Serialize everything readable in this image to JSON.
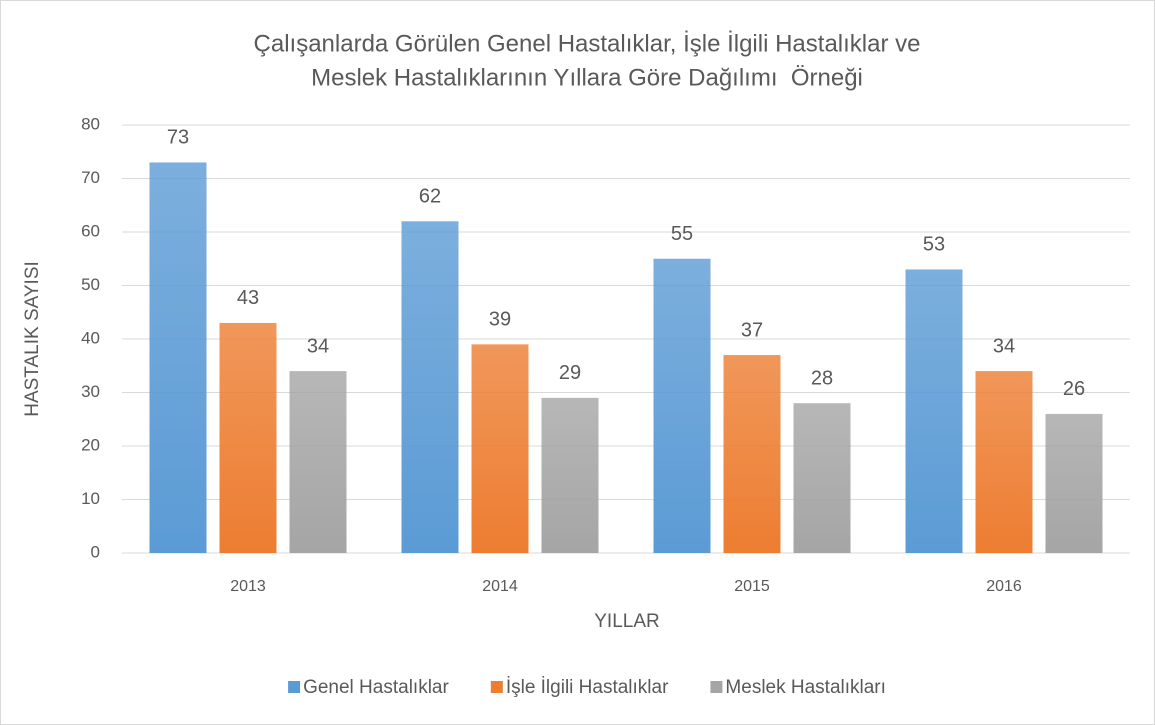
{
  "chart_data": {
    "type": "bar",
    "title": [
      "Çalışanlarda Görülen Genel Hastalıklar, İşle İlgili Hastalıklar ve",
      "Meslek Hastalıklarının Yıllara Göre Dağılımı  Örneği"
    ],
    "x_label": "YILLAR",
    "y_label": "HASTALIK SAYISI",
    "categories": [
      "2013",
      "2014",
      "2015",
      "2016"
    ],
    "series": [
      {
        "name": "Genel Hastalıklar",
        "color": "#5b9bd5",
        "values": [
          73,
          62,
          55,
          53
        ]
      },
      {
        "name": "İşle İlgili Hastalıklar",
        "color": "#ed7d31",
        "values": [
          43,
          39,
          37,
          34
        ]
      },
      {
        "name": "Meslek Hastalıkları",
        "color": "#a5a5a5",
        "values": [
          34,
          29,
          28,
          26
        ]
      }
    ],
    "ylim": [
      0,
      80
    ],
    "yticks": [
      0,
      10,
      20,
      30,
      40,
      50,
      60,
      70,
      80
    ],
    "grid": true,
    "legend": "bottom"
  }
}
